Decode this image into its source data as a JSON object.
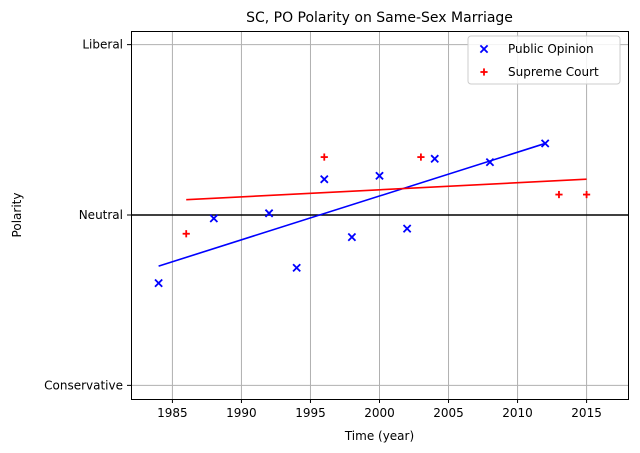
{
  "chart_data": {
    "type": "scatter",
    "title": "SC, PO Polarity on Same-Sex Marriage",
    "xlabel": "Time (year)",
    "ylabel": "Polarity",
    "xlim": [
      1982,
      2018
    ],
    "ylim": [
      -1.08,
      1.08
    ],
    "xticks": [
      1985,
      1990,
      1995,
      2000,
      2005,
      2010,
      2015
    ],
    "yticks": [
      {
        "value": -1,
        "label": "Conservative"
      },
      {
        "value": 0,
        "label": "Neutral"
      },
      {
        "value": 1,
        "label": "Liberal"
      }
    ],
    "grid": true,
    "legend_position": "top-right",
    "reference_line": {
      "y": 0,
      "color": "#000000"
    },
    "series": [
      {
        "name": "Public Opinion",
        "marker": "x",
        "color": "#0000ff",
        "points": [
          [
            1984,
            -0.4
          ],
          [
            1988,
            -0.02
          ],
          [
            1992,
            0.01
          ],
          [
            1994,
            -0.31
          ],
          [
            1996,
            0.21
          ],
          [
            1998,
            -0.13
          ],
          [
            2000,
            0.23
          ],
          [
            2002,
            -0.08
          ],
          [
            2004,
            0.33
          ],
          [
            2008,
            0.31
          ],
          [
            2012,
            0.42
          ]
        ],
        "trend": [
          [
            1984,
            -0.3
          ],
          [
            2012,
            0.42
          ]
        ]
      },
      {
        "name": "Supreme Court",
        "marker": "+",
        "color": "#ff0000",
        "points": [
          [
            1986,
            -0.11
          ],
          [
            1996,
            0.34
          ],
          [
            2003,
            0.34
          ],
          [
            2013,
            0.12
          ],
          [
            2015,
            0.12
          ]
        ],
        "trend": [
          [
            1986,
            0.09
          ],
          [
            2015,
            0.21
          ]
        ]
      }
    ]
  }
}
